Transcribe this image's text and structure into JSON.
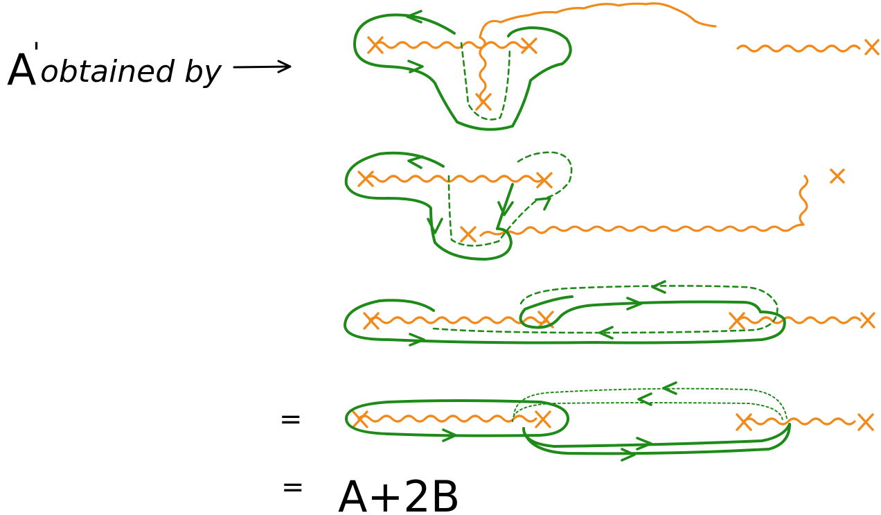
{
  "left_label": {
    "prefix": "A",
    "prime": "'",
    "text": " obtained by"
  },
  "equals_1": "=",
  "equals_2": "=",
  "result": "A+2B",
  "colors": {
    "branch_cut": "#f28a1b",
    "contour": "#1e8a18",
    "ink": "#000000"
  },
  "icons": [
    "right-arrow-icon",
    "branch-point-cross-icon",
    "contour-direction-arrow-icon"
  ]
}
